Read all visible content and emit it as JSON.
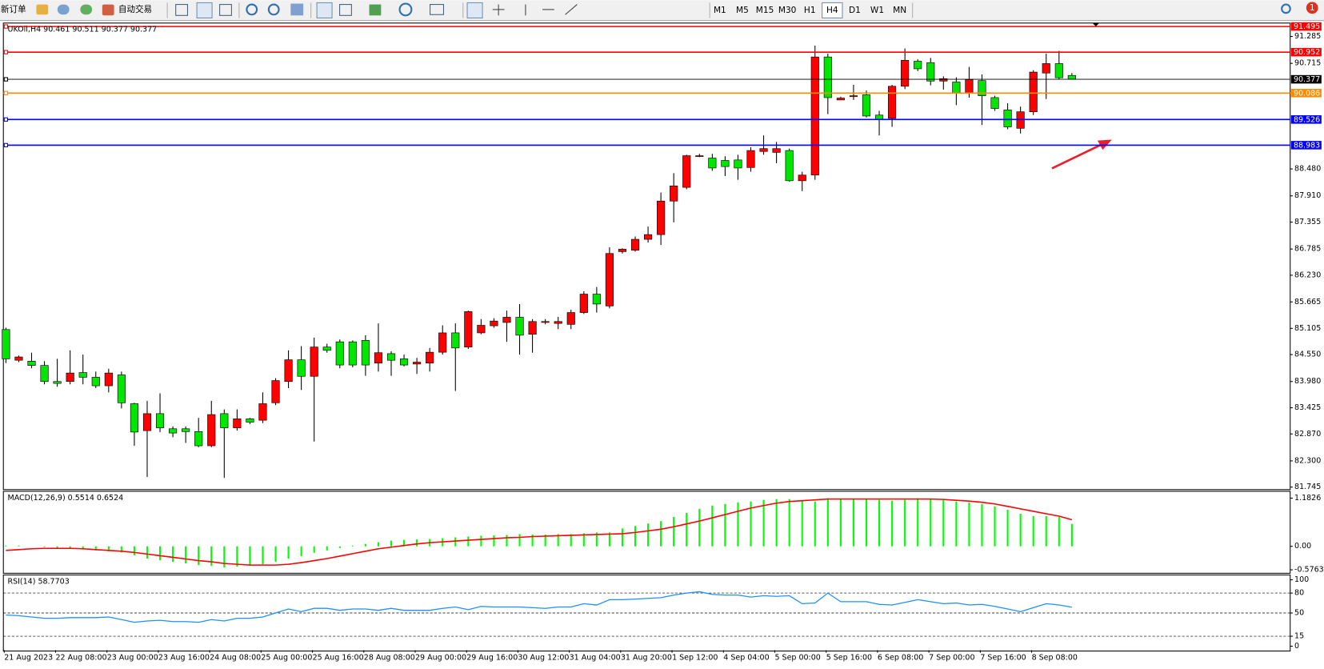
{
  "toolbar": {
    "new_order": "新订单",
    "auto_trading": "自动交易",
    "timeframes": [
      "M1",
      "M5",
      "M15",
      "M30",
      "H1",
      "H4",
      "D1",
      "W1",
      "MN"
    ],
    "active_timeframe": "H4",
    "notification_count": 1
  },
  "chart_data": [
    {
      "type": "candlestick",
      "title": "UKOil,H4  90.461 90.511 90.377 90.377",
      "categories": [
        "21 Aug 2023",
        null,
        null,
        null,
        "22 Aug 08:00",
        null,
        null,
        null,
        "23 Aug 00:00",
        null,
        null,
        null,
        "23 Aug 16:00",
        null,
        null,
        null,
        "24 Aug 08:00",
        null,
        null,
        null,
        "25 Aug 00:00",
        null,
        null,
        null,
        "25 Aug 16:00",
        null,
        null,
        null,
        "28 Aug 08:00",
        null,
        null,
        null,
        "29 Aug 00:00",
        null,
        null,
        null,
        "29 Aug 16:00",
        null,
        null,
        null,
        "30 Aug 12:00",
        null,
        null,
        null,
        "31 Aug 04:00",
        null,
        null,
        null,
        "31 Aug 20:00",
        null,
        null,
        null,
        "1 Sep 12:00",
        null,
        null,
        null,
        "4 Sep 04:00",
        null,
        null,
        null,
        "5 Sep 00:00",
        null,
        null,
        null,
        "5 Sep 16:00",
        null,
        null,
        null,
        "6 Sep 08:00",
        null,
        null,
        null,
        "7 Sep 00:00",
        null,
        null,
        null,
        "7 Sep 16:00",
        null,
        null,
        null,
        "8 Sep 08:00",
        null,
        null,
        null
      ],
      "open": [
        85.08,
        84.43,
        84.41,
        84.32,
        83.98,
        83.98,
        84.17,
        84.07,
        83.89,
        84.12,
        83.51,
        82.94,
        83.3,
        82.98,
        82.98,
        82.92,
        82.62,
        83.3,
        83.0,
        83.19,
        83.16,
        83.53,
        83.98,
        84.44,
        84.09,
        84.71,
        84.82,
        84.82,
        84.85,
        84.37,
        84.57,
        84.46,
        84.35,
        84.37,
        84.6,
        85.01,
        84.71,
        85.01,
        85.16,
        85.23,
        85.34,
        84.98,
        85.23,
        85.21,
        85.19,
        85.44,
        85.83,
        85.58,
        86.73,
        86.76,
        86.99,
        87.09,
        87.8,
        88.09,
        88.75,
        88.71,
        88.66,
        88.67,
        88.51,
        88.85,
        88.83,
        88.87,
        88.23,
        88.35,
        90.85,
        89.94,
        90.01,
        90.05,
        89.62,
        89.55,
        90.23,
        90.76,
        90.73,
        90.34,
        90.32,
        90.08,
        90.35,
        89.99,
        89.73,
        89.34,
        89.69,
        90.51,
        90.71,
        90.46
      ],
      "high": [
        85.12,
        84.53,
        84.59,
        84.41,
        84.46,
        84.64,
        84.55,
        84.19,
        84.25,
        84.19,
        83.53,
        83.57,
        83.73,
        83.03,
        83.03,
        83.21,
        83.57,
        83.39,
        83.39,
        83.21,
        83.75,
        84.05,
        84.64,
        84.73,
        84.91,
        84.78,
        84.87,
        84.85,
        84.96,
        85.21,
        84.62,
        84.55,
        84.48,
        84.69,
        85.17,
        85.21,
        85.48,
        85.3,
        85.32,
        85.48,
        85.62,
        85.3,
        85.3,
        85.35,
        85.5,
        85.89,
        85.98,
        86.82,
        86.8,
        87.05,
        87.26,
        87.98,
        88.39,
        88.78,
        88.8,
        88.8,
        88.75,
        88.78,
        88.94,
        89.19,
        89.05,
        88.91,
        88.42,
        91.09,
        90.92,
        90.01,
        90.26,
        90.14,
        89.71,
        90.26,
        91.03,
        90.8,
        90.83,
        90.44,
        90.42,
        90.64,
        90.48,
        90.03,
        89.87,
        89.8,
        90.57,
        90.92,
        90.98,
        90.51
      ],
      "low": [
        84.37,
        84.39,
        84.26,
        83.92,
        83.87,
        83.92,
        83.92,
        83.84,
        83.75,
        83.41,
        82.62,
        81.96,
        82.91,
        82.8,
        82.68,
        82.59,
        82.59,
        81.94,
        82.94,
        83.08,
        83.1,
        83.48,
        83.84,
        83.8,
        82.71,
        84.59,
        84.26,
        84.28,
        84.1,
        84.19,
        84.1,
        84.3,
        84.14,
        84.19,
        84.55,
        83.78,
        84.67,
        84.98,
        85.12,
        84.82,
        84.55,
        84.59,
        85.19,
        85.09,
        85.09,
        85.41,
        85.44,
        85.53,
        86.69,
        86.73,
        86.92,
        86.87,
        87.35,
        88.05,
        88.73,
        88.44,
        88.33,
        88.25,
        88.42,
        88.78,
        88.6,
        88.21,
        88.01,
        88.25,
        89.64,
        89.94,
        89.94,
        89.57,
        89.19,
        89.37,
        90.17,
        90.55,
        90.25,
        90.16,
        89.83,
        89.99,
        89.41,
        89.71,
        89.32,
        89.23,
        89.62,
        89.96,
        90.37,
        90.38
      ],
      "close": [
        84.46,
        84.5,
        84.32,
        83.98,
        83.94,
        84.16,
        84.07,
        83.89,
        84.16,
        83.53,
        82.91,
        83.3,
        83.0,
        82.89,
        82.92,
        82.62,
        83.28,
        83.0,
        83.19,
        83.12,
        83.51,
        84.0,
        84.44,
        84.09,
        84.71,
        84.64,
        84.33,
        84.33,
        84.33,
        84.59,
        84.43,
        84.33,
        84.39,
        84.6,
        85.01,
        84.69,
        85.46,
        85.17,
        85.26,
        85.34,
        84.96,
        85.25,
        85.25,
        85.25,
        85.44,
        85.83,
        85.62,
        86.69,
        86.78,
        86.99,
        87.09,
        87.8,
        88.12,
        88.76,
        88.76,
        88.5,
        88.53,
        88.5,
        88.87,
        88.91,
        88.91,
        88.23,
        88.35,
        90.85,
        89.99,
        89.98,
        90.03,
        89.6,
        89.53,
        90.23,
        90.78,
        90.6,
        90.34,
        90.39,
        90.08,
        90.37,
        90.03,
        89.76,
        89.37,
        89.69,
        90.53,
        90.71,
        90.41,
        90.38
      ],
      "up_color": "#ff0000",
      "down_color": "#00e600",
      "ylim": [
        81.71,
        91.55
      ],
      "yticks": [
        91.285,
        90.715,
        {
          "value": 88.48,
          "label": "88.480"
        },
        {
          "value": 87.91,
          "label": "87.910"
        },
        87.355,
        86.785,
        {
          "value": 86.23,
          "label": "86.230"
        },
        85.665,
        85.105,
        {
          "value": 84.55,
          "label": "84.550"
        },
        {
          "value": 83.98,
          "label": "83.980"
        },
        83.425,
        {
          "value": 82.87,
          "label": "82.870"
        },
        {
          "value": 82.3,
          "label": "82.300"
        },
        81.745
      ],
      "levels": [
        {
          "value": 91.495,
          "color": "#ff0000"
        },
        {
          "value": 90.952,
          "color": "#ff0000"
        },
        {
          "value": 90.377,
          "color": "#000000"
        },
        {
          "value": 90.086,
          "color": "#ff8c00"
        },
        {
          "value": 89.526,
          "color": "#0000ff"
        },
        {
          "value": 88.983,
          "color": "#0000ff"
        }
      ],
      "grid": false
    },
    {
      "type": "macd",
      "title": "MACD(12,26,9) 0.5514 0.6524",
      "values": [
        0.02,
        0.02,
        0.0,
        -0.02,
        -0.05,
        -0.06,
        -0.08,
        -0.1,
        -0.12,
        -0.15,
        -0.22,
        -0.3,
        -0.34,
        -0.38,
        -0.42,
        -0.46,
        -0.48,
        -0.52,
        -0.5,
        -0.48,
        -0.44,
        -0.38,
        -0.3,
        -0.24,
        -0.16,
        -0.1,
        -0.04,
        0.02,
        0.06,
        0.1,
        0.14,
        0.16,
        0.17,
        0.18,
        0.2,
        0.22,
        0.24,
        0.26,
        0.27,
        0.28,
        0.3,
        0.29,
        0.29,
        0.3,
        0.3,
        0.32,
        0.34,
        0.34,
        0.44,
        0.5,
        0.56,
        0.62,
        0.72,
        0.82,
        0.92,
        1.0,
        1.04,
        1.08,
        1.1,
        1.14,
        1.16,
        1.16,
        1.12,
        1.1,
        1.18,
        1.16,
        1.15,
        1.16,
        1.14,
        1.12,
        1.14,
        1.18,
        1.16,
        1.14,
        1.1,
        1.08,
        1.04,
        0.98,
        0.9,
        0.8,
        0.74,
        0.74,
        0.72,
        0.5514
      ],
      "signal": [
        -0.1,
        -0.08,
        -0.06,
        -0.05,
        -0.05,
        -0.05,
        -0.06,
        -0.08,
        -0.1,
        -0.12,
        -0.15,
        -0.19,
        -0.23,
        -0.27,
        -0.31,
        -0.35,
        -0.38,
        -0.42,
        -0.44,
        -0.46,
        -0.46,
        -0.46,
        -0.44,
        -0.4,
        -0.35,
        -0.3,
        -0.24,
        -0.18,
        -0.12,
        -0.06,
        -0.02,
        0.02,
        0.06,
        0.09,
        0.11,
        0.13,
        0.15,
        0.17,
        0.19,
        0.21,
        0.22,
        0.24,
        0.25,
        0.26,
        0.27,
        0.28,
        0.29,
        0.3,
        0.31,
        0.34,
        0.38,
        0.42,
        0.48,
        0.55,
        0.62,
        0.7,
        0.78,
        0.86,
        0.94,
        1.0,
        1.06,
        1.1,
        1.12,
        1.14,
        1.16,
        1.16,
        1.16,
        1.16,
        1.16,
        1.16,
        1.16,
        1.16,
        1.16,
        1.15,
        1.13,
        1.11,
        1.08,
        1.04,
        0.98,
        0.92,
        0.86,
        0.8,
        0.74,
        0.6524
      ],
      "color": "#00ff00",
      "signal_color": "#ff0000",
      "ylim": [
        -0.64,
        1.33
      ],
      "yticks": [
        1.1826,
        {
          "value": 0,
          "label": "0.00"
        },
        -0.5763
      ]
    },
    {
      "type": "line",
      "title": "RSI(14) 58.7703",
      "values": [
        47,
        46,
        44,
        42,
        42,
        43,
        43,
        43,
        44,
        40,
        36,
        38,
        39,
        37,
        37,
        36,
        40,
        38,
        42,
        42,
        44,
        50,
        56,
        52,
        57,
        57,
        54,
        56,
        56,
        54,
        57,
        54,
        54,
        54,
        57,
        59,
        55,
        60,
        59,
        59,
        59,
        58,
        57,
        59,
        59,
        64,
        62,
        70,
        70,
        71,
        72,
        73,
        77,
        80,
        82,
        78,
        77,
        77,
        74,
        76,
        75,
        76,
        64,
        65,
        80,
        67,
        67,
        67,
        63,
        62,
        66,
        70,
        67,
        64,
        65,
        62,
        63,
        60,
        56,
        52,
        58,
        64,
        62,
        58.7703
      ],
      "color": "#1e90ff",
      "levels": [
        80,
        50,
        15
      ],
      "ylim": [
        -6,
        106
      ],
      "yticks": [
        100,
        80,
        50,
        15,
        0
      ]
    }
  ]
}
